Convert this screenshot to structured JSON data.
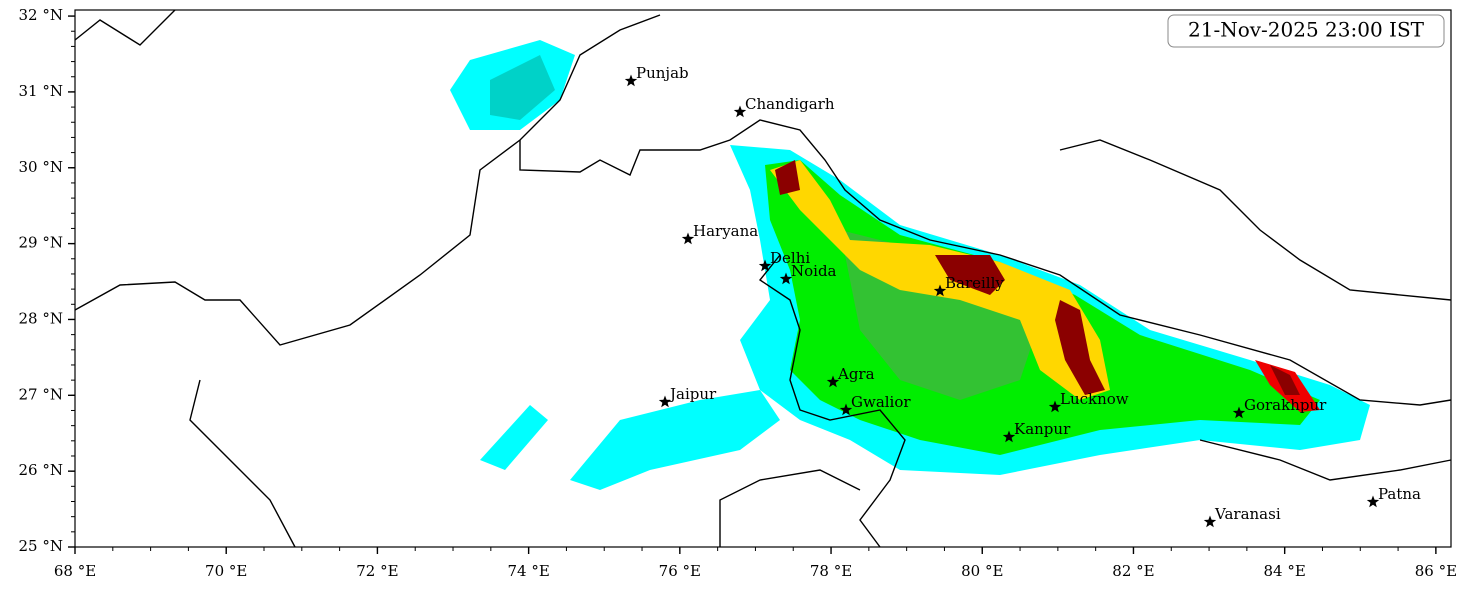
{
  "title": "21-Nov-2025 23:00 IST",
  "map": {
    "xlim": [
      68,
      86.2
    ],
    "ylim": [
      25,
      32.08
    ],
    "xticks": [
      {
        "value": 68,
        "label": "68 °E"
      },
      {
        "value": 70,
        "label": "70 °E"
      },
      {
        "value": 72,
        "label": "72 °E"
      },
      {
        "value": 74,
        "label": "74 °E"
      },
      {
        "value": 76,
        "label": "76 °E"
      },
      {
        "value": 78,
        "label": "78 °E"
      },
      {
        "value": 80,
        "label": "80 °E"
      },
      {
        "value": 82,
        "label": "82 °E"
      },
      {
        "value": 84,
        "label": "84 °E"
      },
      {
        "value": 86,
        "label": "86 °E"
      }
    ],
    "yticks": [
      {
        "value": 25,
        "label": "25 °N"
      },
      {
        "value": 26,
        "label": "26 °N"
      },
      {
        "value": 27,
        "label": "27 °N"
      },
      {
        "value": 28,
        "label": "28 °N"
      },
      {
        "value": 29,
        "label": "29 °N"
      },
      {
        "value": 30,
        "label": "30 °N"
      },
      {
        "value": 31,
        "label": "31 °N"
      },
      {
        "value": 32,
        "label": "32 °N"
      }
    ],
    "cities": [
      "Punjab",
      "Chandigarh",
      "Haryana",
      "Delhi",
      "Noida",
      "Bareilly",
      "Agra",
      "Jaipur",
      "Gwalior",
      "Lucknow",
      "Kanpur",
      "Gorakhpur",
      "Varanasi",
      "Patna"
    ]
  }
}
